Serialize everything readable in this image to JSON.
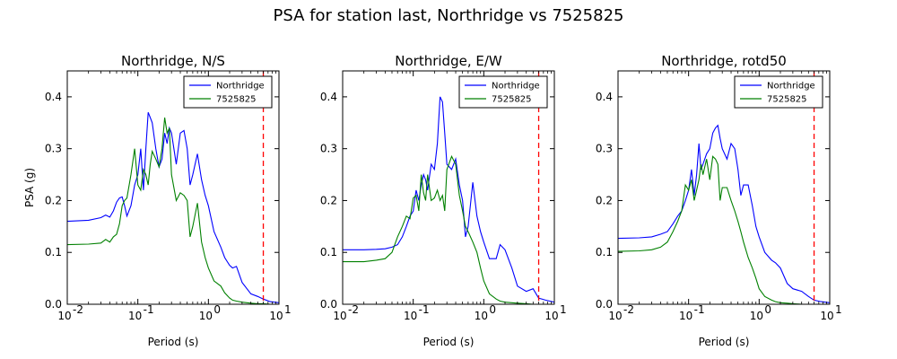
{
  "figure": {
    "suptitle": "PSA for station last, Northridge vs 7525825"
  },
  "colors": {
    "northridge": "#0000ff",
    "sim": "#008000",
    "cutoff": "#ff0000"
  },
  "chart_data": [
    {
      "type": "line",
      "title": "Northridge, N/S",
      "xlabel": "Period (s)",
      "ylabel": "PSA (g)",
      "xscale": "log",
      "xlim": [
        0.01,
        10
      ],
      "ylim": [
        0,
        0.45
      ],
      "xticks": [
        {
          "v": 0.01,
          "base": "10",
          "exp": "-2"
        },
        {
          "v": 0.1,
          "base": "10",
          "exp": "-1"
        },
        {
          "v": 1,
          "base": "10",
          "exp": "0"
        },
        {
          "v": 10,
          "base": "10",
          "exp": "1"
        }
      ],
      "yticks": [
        {
          "v": 0,
          "label": "0.0"
        },
        {
          "v": 0.1,
          "label": "0.1"
        },
        {
          "v": 0.2,
          "label": "0.2"
        },
        {
          "v": 0.3,
          "label": "0.3"
        },
        {
          "v": 0.4,
          "label": "0.4"
        }
      ],
      "legend": "top-right",
      "cutoff_period": 6.0,
      "series": [
        {
          "name": "Northridge",
          "color": "#0000ff",
          "x": [
            0.01,
            0.02,
            0.03,
            0.035,
            0.04,
            0.045,
            0.05,
            0.055,
            0.06,
            0.065,
            0.07,
            0.08,
            0.09,
            0.1,
            0.11,
            0.12,
            0.13,
            0.14,
            0.15,
            0.16,
            0.18,
            0.2,
            0.22,
            0.24,
            0.26,
            0.28,
            0.3,
            0.35,
            0.4,
            0.45,
            0.5,
            0.55,
            0.6,
            0.7,
            0.8,
            0.9,
            1.0,
            1.2,
            1.5,
            1.7,
            2.0,
            2.2,
            2.5,
            3.0,
            4.0,
            5.0,
            6.0,
            7.5,
            10.0
          ],
          "y": [
            0.16,
            0.162,
            0.167,
            0.172,
            0.168,
            0.18,
            0.197,
            0.205,
            0.207,
            0.19,
            0.17,
            0.19,
            0.23,
            0.25,
            0.3,
            0.22,
            0.3,
            0.37,
            0.36,
            0.35,
            0.3,
            0.265,
            0.28,
            0.33,
            0.31,
            0.34,
            0.33,
            0.27,
            0.33,
            0.335,
            0.3,
            0.23,
            0.25,
            0.29,
            0.24,
            0.21,
            0.19,
            0.14,
            0.11,
            0.09,
            0.075,
            0.07,
            0.073,
            0.042,
            0.02,
            0.015,
            0.01,
            0.005,
            0.003
          ]
        },
        {
          "name": "7525825",
          "color": "#008000",
          "x": [
            0.01,
            0.02,
            0.03,
            0.035,
            0.04,
            0.045,
            0.05,
            0.055,
            0.06,
            0.065,
            0.07,
            0.08,
            0.09,
            0.1,
            0.11,
            0.12,
            0.13,
            0.14,
            0.15,
            0.16,
            0.18,
            0.2,
            0.22,
            0.24,
            0.26,
            0.28,
            0.3,
            0.35,
            0.4,
            0.45,
            0.5,
            0.55,
            0.6,
            0.7,
            0.8,
            0.9,
            1.0,
            1.2,
            1.5,
            1.7,
            2.0,
            2.2,
            2.5,
            3.0,
            4.0,
            5.0,
            6.0,
            7.5,
            10.0
          ],
          "y": [
            0.115,
            0.116,
            0.118,
            0.125,
            0.12,
            0.13,
            0.135,
            0.155,
            0.19,
            0.2,
            0.205,
            0.25,
            0.3,
            0.23,
            0.22,
            0.26,
            0.25,
            0.23,
            0.27,
            0.295,
            0.28,
            0.265,
            0.3,
            0.36,
            0.33,
            0.34,
            0.25,
            0.2,
            0.215,
            0.21,
            0.2,
            0.13,
            0.15,
            0.195,
            0.12,
            0.09,
            0.07,
            0.045,
            0.035,
            0.022,
            0.012,
            0.008,
            0.006,
            0.004,
            0.002,
            0.001,
            0.001,
            0.0,
            0.0
          ]
        }
      ]
    },
    {
      "type": "line",
      "title": "Northridge, E/W",
      "xlabel": "Period (s)",
      "ylabel": "",
      "xscale": "log",
      "xlim": [
        0.01,
        10
      ],
      "ylim": [
        0,
        0.45
      ],
      "xticks": [
        {
          "v": 0.01,
          "base": "10",
          "exp": "-2"
        },
        {
          "v": 0.1,
          "base": "10",
          "exp": "-1"
        },
        {
          "v": 1,
          "base": "10",
          "exp": "0"
        },
        {
          "v": 10,
          "base": "10",
          "exp": "1"
        }
      ],
      "yticks": [
        {
          "v": 0,
          "label": "0.0"
        },
        {
          "v": 0.1,
          "label": "0.1"
        },
        {
          "v": 0.2,
          "label": "0.2"
        },
        {
          "v": 0.3,
          "label": "0.3"
        },
        {
          "v": 0.4,
          "label": "0.4"
        }
      ],
      "legend": "top-right",
      "cutoff_period": 6.0,
      "series": [
        {
          "name": "Northridge",
          "color": "#0000ff",
          "x": [
            0.01,
            0.02,
            0.03,
            0.04,
            0.05,
            0.06,
            0.07,
            0.08,
            0.09,
            0.1,
            0.11,
            0.12,
            0.13,
            0.14,
            0.15,
            0.16,
            0.18,
            0.2,
            0.22,
            0.24,
            0.26,
            0.28,
            0.3,
            0.35,
            0.4,
            0.45,
            0.5,
            0.55,
            0.6,
            0.7,
            0.8,
            0.9,
            1.0,
            1.2,
            1.5,
            1.7,
            2.0,
            2.5,
            3.0,
            4.0,
            5.0,
            6.0,
            7.5,
            10.0
          ],
          "y": [
            0.105,
            0.105,
            0.106,
            0.107,
            0.11,
            0.115,
            0.13,
            0.15,
            0.17,
            0.18,
            0.22,
            0.2,
            0.23,
            0.25,
            0.24,
            0.22,
            0.27,
            0.26,
            0.31,
            0.4,
            0.39,
            0.33,
            0.27,
            0.26,
            0.28,
            0.23,
            0.2,
            0.13,
            0.15,
            0.235,
            0.17,
            0.14,
            0.12,
            0.088,
            0.088,
            0.115,
            0.105,
            0.07,
            0.035,
            0.025,
            0.03,
            0.012,
            0.008,
            0.004
          ]
        },
        {
          "name": "7525825",
          "color": "#008000",
          "x": [
            0.01,
            0.02,
            0.03,
            0.04,
            0.05,
            0.06,
            0.07,
            0.08,
            0.09,
            0.1,
            0.11,
            0.12,
            0.13,
            0.14,
            0.15,
            0.16,
            0.18,
            0.2,
            0.22,
            0.24,
            0.26,
            0.28,
            0.3,
            0.35,
            0.4,
            0.45,
            0.5,
            0.55,
            0.6,
            0.7,
            0.8,
            0.9,
            1.0,
            1.2,
            1.5,
            1.7,
            2.0,
            2.5,
            3.0,
            4.0,
            5.0,
            6.0,
            7.5,
            10.0
          ],
          "y": [
            0.082,
            0.082,
            0.085,
            0.088,
            0.1,
            0.13,
            0.15,
            0.17,
            0.165,
            0.205,
            0.21,
            0.18,
            0.25,
            0.215,
            0.2,
            0.25,
            0.2,
            0.205,
            0.22,
            0.2,
            0.21,
            0.18,
            0.26,
            0.285,
            0.27,
            0.21,
            0.18,
            0.15,
            0.14,
            0.12,
            0.1,
            0.07,
            0.045,
            0.02,
            0.01,
            0.006,
            0.004,
            0.003,
            0.002,
            0.001,
            0.0,
            0.0,
            0.0,
            0.0
          ]
        }
      ]
    },
    {
      "type": "line",
      "title": "Northridge, rotd50",
      "xlabel": "Period (s)",
      "ylabel": "",
      "xscale": "log",
      "xlim": [
        0.01,
        10
      ],
      "ylim": [
        0,
        0.45
      ],
      "xticks": [
        {
          "v": 0.01,
          "base": "10",
          "exp": "-2"
        },
        {
          "v": 0.1,
          "base": "10",
          "exp": "-1"
        },
        {
          "v": 1,
          "base": "10",
          "exp": "0"
        },
        {
          "v": 10,
          "base": "10",
          "exp": "1"
        }
      ],
      "yticks": [
        {
          "v": 0,
          "label": "0.0"
        },
        {
          "v": 0.1,
          "label": "0.1"
        },
        {
          "v": 0.2,
          "label": "0.2"
        },
        {
          "v": 0.3,
          "label": "0.3"
        },
        {
          "v": 0.4,
          "label": "0.4"
        }
      ],
      "legend": "top-right",
      "cutoff_period": 6.0,
      "series": [
        {
          "name": "Northridge",
          "color": "#0000ff",
          "x": [
            0.01,
            0.02,
            0.03,
            0.04,
            0.05,
            0.06,
            0.07,
            0.08,
            0.09,
            0.1,
            0.11,
            0.12,
            0.13,
            0.14,
            0.15,
            0.16,
            0.18,
            0.2,
            0.22,
            0.24,
            0.26,
            0.28,
            0.3,
            0.35,
            0.4,
            0.45,
            0.5,
            0.55,
            0.6,
            0.7,
            0.8,
            0.9,
            1.0,
            1.2,
            1.5,
            1.7,
            2.0,
            2.5,
            3.0,
            4.0,
            5.0,
            6.0,
            7.5,
            10.0
          ],
          "y": [
            0.127,
            0.128,
            0.13,
            0.135,
            0.14,
            0.155,
            0.17,
            0.18,
            0.2,
            0.22,
            0.26,
            0.21,
            0.25,
            0.31,
            0.26,
            0.27,
            0.29,
            0.3,
            0.33,
            0.34,
            0.345,
            0.32,
            0.3,
            0.28,
            0.31,
            0.3,
            0.26,
            0.21,
            0.23,
            0.23,
            0.19,
            0.15,
            0.13,
            0.1,
            0.085,
            0.08,
            0.07,
            0.04,
            0.03,
            0.025,
            0.015,
            0.008,
            0.005,
            0.003
          ]
        },
        {
          "name": "7525825",
          "color": "#008000",
          "x": [
            0.01,
            0.02,
            0.03,
            0.04,
            0.05,
            0.06,
            0.07,
            0.08,
            0.09,
            0.1,
            0.11,
            0.12,
            0.13,
            0.14,
            0.15,
            0.16,
            0.18,
            0.2,
            0.22,
            0.24,
            0.26,
            0.28,
            0.3,
            0.35,
            0.4,
            0.45,
            0.5,
            0.55,
            0.6,
            0.7,
            0.8,
            0.9,
            1.0,
            1.2,
            1.5,
            1.7,
            2.0,
            2.5,
            3.0,
            4.0,
            5.0,
            6.0,
            7.5,
            10.0
          ],
          "y": [
            0.102,
            0.103,
            0.105,
            0.11,
            0.12,
            0.14,
            0.16,
            0.18,
            0.23,
            0.22,
            0.24,
            0.2,
            0.22,
            0.24,
            0.27,
            0.25,
            0.28,
            0.24,
            0.285,
            0.28,
            0.27,
            0.2,
            0.225,
            0.225,
            0.2,
            0.18,
            0.16,
            0.14,
            0.12,
            0.09,
            0.07,
            0.05,
            0.03,
            0.015,
            0.008,
            0.005,
            0.003,
            0.002,
            0.001,
            0.0,
            0.0,
            0.0,
            0.0,
            0.0
          ]
        }
      ]
    }
  ]
}
